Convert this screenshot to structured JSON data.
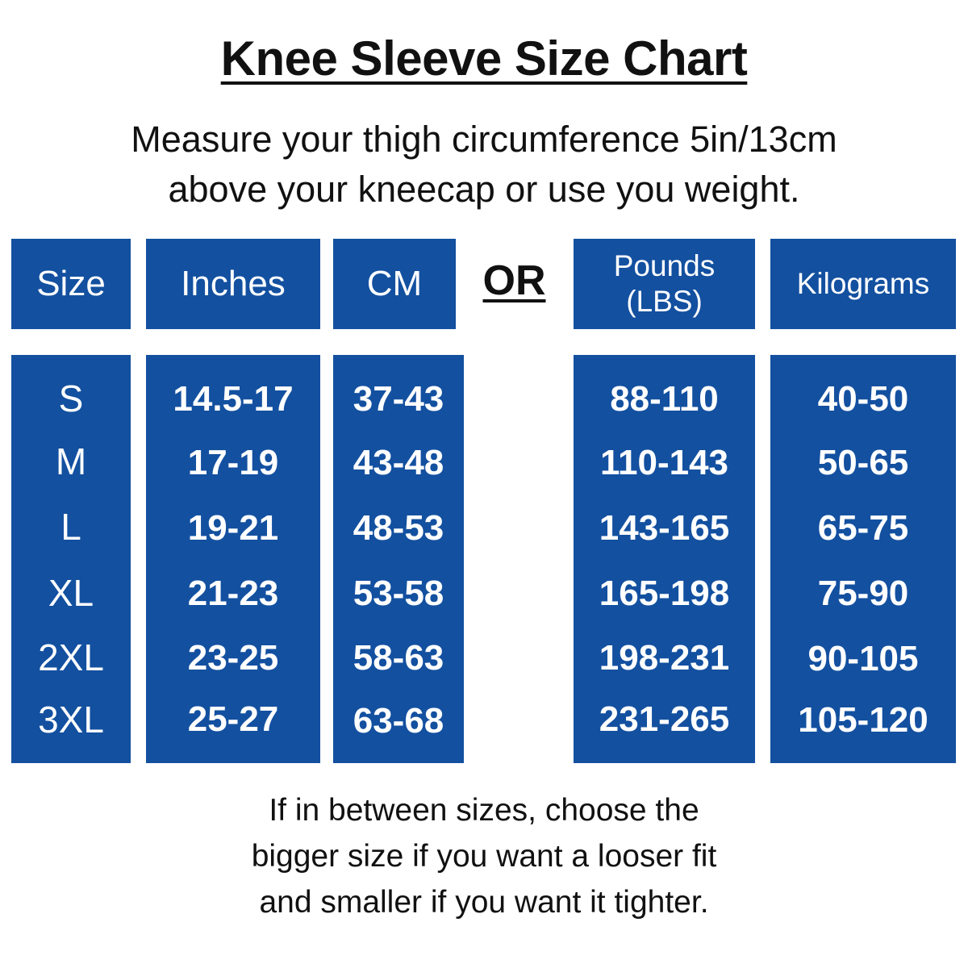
{
  "title": "Knee Sleeve Size Chart",
  "instructions": [
    "Measure your thigh circumference 5in/13cm",
    "above your kneecap or use you weight."
  ],
  "separator": "OR",
  "headers": {
    "size": "Size",
    "inches": "Inches",
    "cm": "CM",
    "pounds_line1": "Pounds",
    "pounds_line2": "(LBS)",
    "kilograms": "Kilograms"
  },
  "rows": [
    {
      "size": "S",
      "inches": "14.5-17",
      "cm": "37-43",
      "lbs": "88-110",
      "kg": "40-50"
    },
    {
      "size": "M",
      "inches": "17-19",
      "cm": "43-48",
      "lbs": "110-143",
      "kg": "50-65"
    },
    {
      "size": "L",
      "inches": "19-21",
      "cm": "48-53",
      "lbs": "143-165",
      "kg": "65-75"
    },
    {
      "size": "XL",
      "inches": "21-23",
      "cm": "53-58",
      "lbs": "165-198",
      "kg": "75-90"
    },
    {
      "size": "2XL",
      "inches": "23-25",
      "cm": "58-63",
      "lbs": "198-231",
      "kg": "90-105"
    },
    {
      "size": "3XL",
      "inches": "25-27",
      "cm": "63-68",
      "lbs": "231-265",
      "kg": "105-120"
    }
  ],
  "note": [
    "If in between sizes, choose the",
    "bigger size if you want a looser fit",
    "and smaller if you want it tighter."
  ],
  "colors": {
    "panel": "#1350a0",
    "text": "#111111",
    "panel_text": "#ffffff"
  }
}
